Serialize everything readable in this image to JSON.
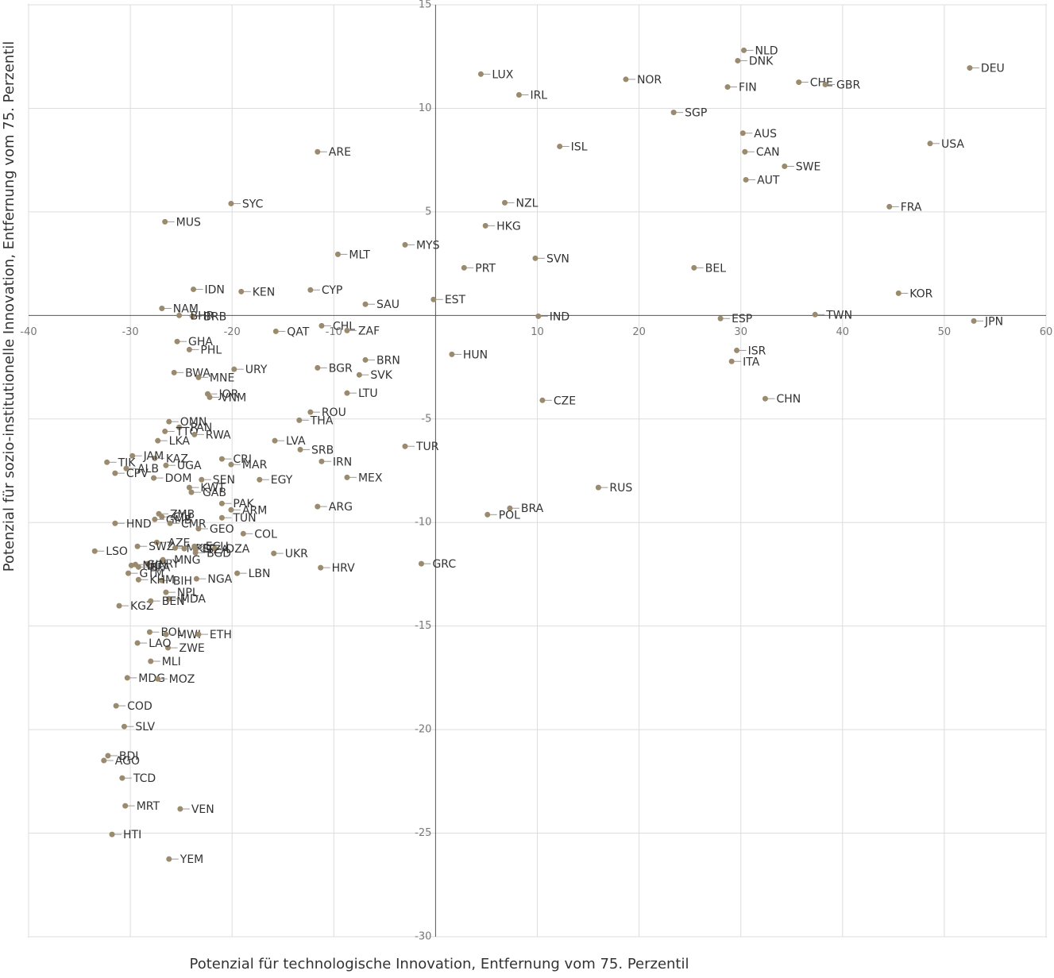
{
  "chart_data": {
    "type": "scatter",
    "color": "#9a8a6e",
    "grid": true,
    "xlabel": "Potenzial für technologische Innovation, Entfernung vom 75. Perzentil",
    "ylabel": "Potenzial für sozio-institutionelle Innovation, Entfernung vom 75. Perzentil",
    "xlim": [
      -40,
      60
    ],
    "ylim": [
      -30,
      15
    ],
    "xticks": [
      -40,
      -30,
      -20,
      -10,
      10,
      20,
      30,
      40,
      50,
      60
    ],
    "yticks": [
      15,
      10,
      5,
      -5,
      -10,
      -15,
      -20,
      -25,
      -30
    ],
    "labels": [
      "LUX",
      "NLD",
      "DNK",
      "CHE",
      "GBR",
      "DEU",
      "NOR",
      "IRL",
      "FIN",
      "SGP",
      "AUS",
      "ISL",
      "USA",
      "CAN",
      "SWE",
      "AUT",
      "NZL",
      "FRA",
      "HKG",
      "SVN",
      "PRT",
      "BEL",
      "ARE",
      "SYC",
      "MUS",
      "MLT",
      "MYS",
      "IDN",
      "KEN",
      "CYP",
      "NAM",
      "BRB",
      "BHR",
      "SAU",
      "EST",
      "IND",
      "ESP",
      "TWN",
      "KOR",
      "JPN",
      "CHL",
      "QAT",
      "ZAF",
      "GHA",
      "PHL",
      "ISR",
      "HUN",
      "ITA",
      "BRN",
      "BGR",
      "URY",
      "SVK",
      "BWA",
      "MNE",
      "LTU",
      "JOR",
      "VNM",
      "CZE",
      "CHN",
      "ROU",
      "THA",
      "OMN",
      "PAN",
      "TTO",
      "LKA",
      "RWA",
      "LVA",
      "KAZ",
      "JAM",
      "TJK",
      "CPV",
      "ALB",
      "UGA",
      "CRI",
      "MAR",
      "SRB",
      "IRN",
      "TUR",
      "DOM",
      "SEN",
      "EGY",
      "MEX",
      "RUS",
      "KWT",
      "GAB",
      "PAK",
      "ARG",
      "ARM",
      "BRA",
      "POL",
      "ZMB",
      "CIV",
      "GMB",
      "HND",
      "CMR",
      "TUN",
      "GEO",
      "COL",
      "AZE",
      "SWZ",
      "LSO",
      "MKD",
      "PER",
      "ECU",
      "DZA",
      "UKR",
      "PRY",
      "NIC",
      "MNG",
      "GTM",
      "TZA",
      "LBN",
      "HRV",
      "GRC",
      "BGD",
      "GIN",
      "BIH",
      "KHM",
      "BFA",
      "NGA",
      "NPL",
      "MDA",
      "KGZ",
      "BEN",
      "BOL",
      "MWI",
      "ETH",
      "ZWE",
      "LAO",
      "MLI",
      "MDG",
      "MOZ",
      "COD",
      "SLV",
      "BDI",
      "AGO",
      "TCD",
      "MRT",
      "VEN",
      "HTI",
      "YEM"
    ],
    "x": [
      4.45,
      30.3,
      29.7,
      35.7,
      38.3,
      52.5,
      18.7,
      8.2,
      28.7,
      23.4,
      30.2,
      12.2,
      48.6,
      30.4,
      34.3,
      30.5,
      6.8,
      44.6,
      4.9,
      9.8,
      2.8,
      25.4,
      -11.6,
      -20.1,
      -26.6,
      -9.6,
      -3.0,
      -23.8,
      -19.1,
      -12.3,
      -26.9,
      -23.9,
      -25.2,
      -6.9,
      -0.2,
      10.1,
      28.0,
      37.3,
      45.5,
      52.9,
      -11.2,
      -15.7,
      -8.7,
      -25.4,
      -24.2,
      29.6,
      1.6,
      29.1,
      -6.9,
      -11.6,
      -19.8,
      -7.5,
      -25.7,
      -23.3,
      -8.7,
      -22.4,
      -22.2,
      10.5,
      32.4,
      -12.3,
      -13.4,
      -26.2,
      -25.2,
      -26.6,
      -27.3,
      -23.7,
      -15.8,
      -27.6,
      -29.8,
      -32.3,
      -31.5,
      -30.4,
      -26.5,
      -21.0,
      -20.1,
      -13.3,
      -11.2,
      -3.0,
      -27.7,
      -23.0,
      -17.3,
      -8.7,
      16.0,
      -24.2,
      -24.0,
      -21.0,
      -11.6,
      -20.1,
      7.3,
      5.1,
      -27.2,
      -26.9,
      -27.6,
      -31.5,
      -26.1,
      -21.0,
      -23.3,
      -18.9,
      -27.4,
      -29.3,
      -33.5,
      -25.6,
      -24.7,
      -23.7,
      -21.7,
      -15.9,
      -28.3,
      -29.9,
      -26.8,
      -30.2,
      -23.6,
      -19.5,
      -11.3,
      -1.4,
      -23.6,
      -29.5,
      -26.9,
      -29.2,
      -29.2,
      -23.5,
      -26.5,
      -26.2,
      -31.1,
      -28.0,
      -28.1,
      -26.5,
      -23.3,
      -26.3,
      -29.3,
      -28.0,
      -30.3,
      -27.3,
      -31.4,
      -30.6,
      -32.2,
      -32.6,
      -30.8,
      -30.5,
      -25.1,
      -31.8,
      -26.2
    ],
    "values": [
      11.65,
      12.8,
      12.3,
      11.26,
      11.15,
      11.95,
      11.4,
      10.65,
      11.03,
      9.8,
      8.8,
      8.16,
      8.3,
      7.9,
      7.2,
      6.55,
      5.44,
      5.25,
      4.33,
      2.76,
      2.3,
      2.3,
      7.9,
      5.4,
      4.52,
      2.95,
      3.41,
      1.26,
      1.15,
      1.23,
      0.34,
      -0.04,
      0,
      0.54,
      0.77,
      -0.04,
      -0.15,
      0.04,
      1.07,
      -0.27,
      -0.5,
      -0.77,
      -0.73,
      -1.26,
      -1.65,
      -1.69,
      -1.88,
      -2.22,
      -2.15,
      -2.53,
      -2.6,
      -2.87,
      -2.76,
      -2.99,
      -3.75,
      -3.79,
      -3.95,
      -4.1,
      -4.02,
      -4.67,
      -5.06,
      -5.13,
      -5.4,
      -5.6,
      -6.05,
      -5.75,
      -6.05,
      -6.9,
      -6.78,
      -7.09,
      -7.62,
      -7.39,
      -7.24,
      -6.93,
      -7.2,
      -6.48,
      -7.05,
      -6.32,
      -7.85,
      -7.93,
      -7.93,
      -7.82,
      -8.31,
      -8.31,
      -8.54,
      -9.08,
      -9.23,
      -9.39,
      -9.31,
      -9.62,
      -9.58,
      -9.73,
      -9.85,
      -10.04,
      -10.04,
      -9.77,
      -10.3,
      -10.54,
      -10.96,
      -11.15,
      -11.38,
      -11.23,
      -11.26,
      -11.15,
      -11.26,
      -11.49,
      -11.99,
      -12.07,
      -11.8,
      -12.45,
      -11.3,
      -12.45,
      -12.18,
      -11.99,
      -11.46,
      -12.03,
      -12.8,
      -12.76,
      -12.15,
      -12.72,
      -13.37,
      -13.68,
      -14.02,
      -13.79,
      -15.29,
      -15.4,
      -15.4,
      -16.05,
      -15.82,
      -16.7,
      -17.5,
      -17.55,
      -18.85,
      -19.85,
      -21.26,
      -21.49,
      -22.34,
      -23.68,
      -23.83,
      -25.06,
      -26.25
    ]
  }
}
